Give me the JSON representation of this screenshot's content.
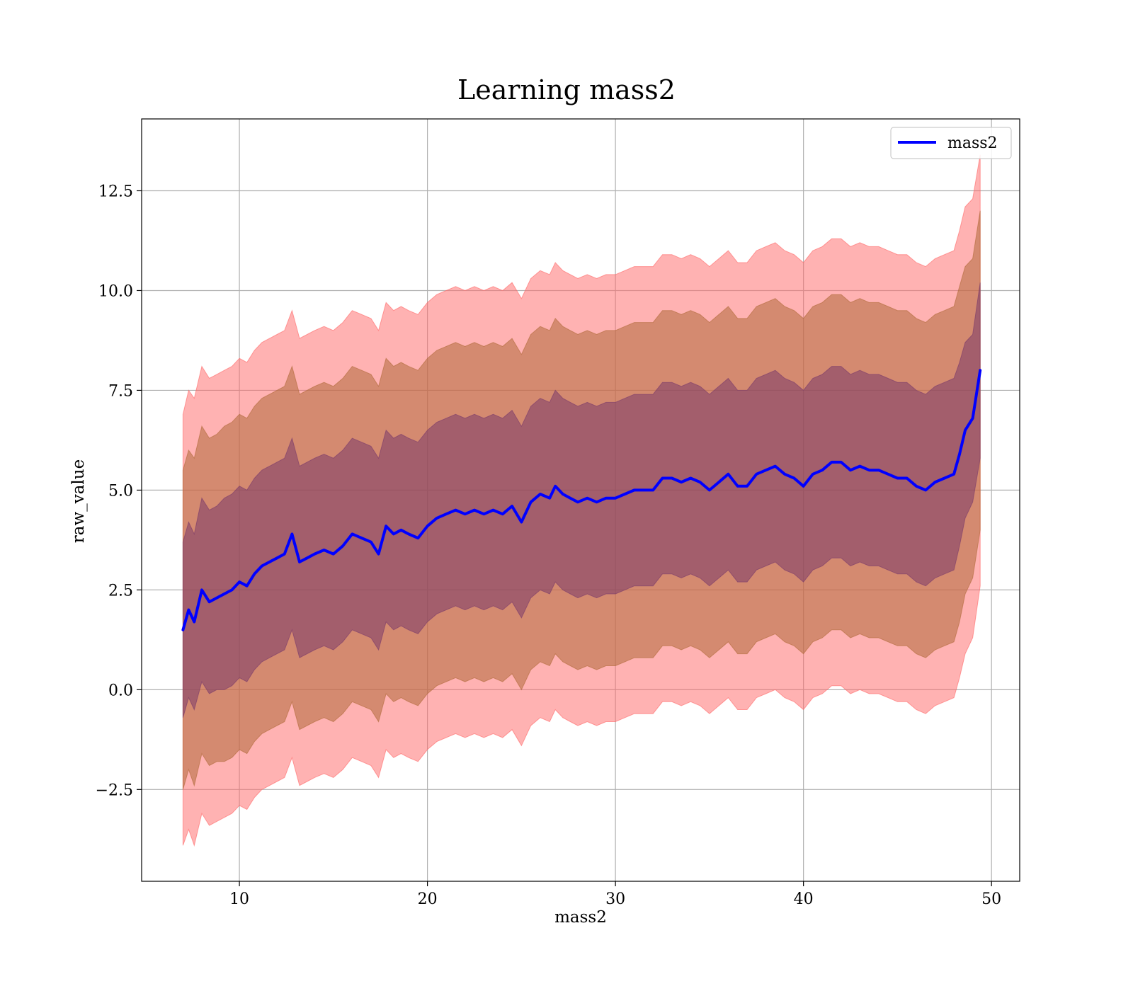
{
  "chart_data": {
    "type": "line",
    "title": "Learning mass2",
    "xlabel": "mass2",
    "ylabel": "raw_value",
    "xlim": [
      4.8,
      51.5
    ],
    "ylim": [
      -4.8,
      14.3
    ],
    "xticks": [
      10,
      20,
      30,
      40,
      50
    ],
    "xtick_labels": [
      "10",
      "20",
      "30",
      "40",
      "50"
    ],
    "yticks": [
      -2.5,
      0.0,
      2.5,
      5.0,
      7.5,
      10.0,
      12.5
    ],
    "ytick_labels": [
      "−2.5",
      "0.0",
      "2.5",
      "5.0",
      "7.5",
      "10.0",
      "12.5"
    ],
    "grid": true,
    "legend": {
      "position": "top-right",
      "entries": [
        "mass2"
      ]
    },
    "series": [
      {
        "name": "mass2",
        "color": "#0000ff",
        "x": [
          7.0,
          7.3,
          7.6,
          8.0,
          8.4,
          8.8,
          9.2,
          9.6,
          10.0,
          10.4,
          10.8,
          11.2,
          11.6,
          12.0,
          12.4,
          12.8,
          13.2,
          13.6,
          14.0,
          14.5,
          15.0,
          15.5,
          16.0,
          16.5,
          17.0,
          17.4,
          17.8,
          18.2,
          18.6,
          19.0,
          19.5,
          20.0,
          20.5,
          21.0,
          21.5,
          22.0,
          22.5,
          23.0,
          23.5,
          24.0,
          24.5,
          25.0,
          25.5,
          26.0,
          26.5,
          26.8,
          27.2,
          27.6,
          28.0,
          28.5,
          29.0,
          29.5,
          30.0,
          30.5,
          31.0,
          31.5,
          32.0,
          32.5,
          33.0,
          33.5,
          34.0,
          34.5,
          35.0,
          35.5,
          36.0,
          36.5,
          37.0,
          37.5,
          38.0,
          38.5,
          39.0,
          39.5,
          40.0,
          40.5,
          41.0,
          41.5,
          42.0,
          42.5,
          43.0,
          43.5,
          44.0,
          44.5,
          45.0,
          45.5,
          46.0,
          46.5,
          47.0,
          47.5,
          48.0,
          48.3,
          48.6,
          49.0,
          49.4
        ],
        "values": [
          1.5,
          2.0,
          1.7,
          2.5,
          2.2,
          2.3,
          2.4,
          2.5,
          2.7,
          2.6,
          2.9,
          3.1,
          3.2,
          3.3,
          3.4,
          3.9,
          3.2,
          3.3,
          3.4,
          3.5,
          3.4,
          3.6,
          3.9,
          3.8,
          3.7,
          3.4,
          4.1,
          3.9,
          4.0,
          3.9,
          3.8,
          4.1,
          4.3,
          4.4,
          4.5,
          4.4,
          4.5,
          4.4,
          4.5,
          4.4,
          4.6,
          4.2,
          4.7,
          4.9,
          4.8,
          5.1,
          4.9,
          4.8,
          4.7,
          4.8,
          4.7,
          4.8,
          4.8,
          4.9,
          5.0,
          5.0,
          5.0,
          5.3,
          5.3,
          5.2,
          5.3,
          5.2,
          5.0,
          5.2,
          5.4,
          5.1,
          5.1,
          5.4,
          5.5,
          5.6,
          5.4,
          5.3,
          5.1,
          5.4,
          5.5,
          5.7,
          5.7,
          5.5,
          5.6,
          5.5,
          5.5,
          5.4,
          5.3,
          5.3,
          5.1,
          5.0,
          5.2,
          5.3,
          5.4,
          5.9,
          6.5,
          6.8,
          8.0
        ]
      }
    ],
    "bands": [
      {
        "sigma": 1,
        "color": "#7a3a6a",
        "opacity": 0.55,
        "half_width": [
          2.2,
          2.2,
          2.2,
          2.3,
          2.3,
          2.3,
          2.4,
          2.4,
          2.4,
          2.4,
          2.4,
          2.4,
          2.4,
          2.4,
          2.4,
          2.4,
          2.4,
          2.4,
          2.4,
          2.4,
          2.4,
          2.4,
          2.4,
          2.4,
          2.4,
          2.4,
          2.4,
          2.4,
          2.4,
          2.4,
          2.4,
          2.4,
          2.4,
          2.4,
          2.4,
          2.4,
          2.4,
          2.4,
          2.4,
          2.4,
          2.4,
          2.4,
          2.4,
          2.4,
          2.4,
          2.4,
          2.4,
          2.4,
          2.4,
          2.4,
          2.4,
          2.4,
          2.4,
          2.4,
          2.4,
          2.4,
          2.4,
          2.4,
          2.4,
          2.4,
          2.4,
          2.4,
          2.4,
          2.4,
          2.4,
          2.4,
          2.4,
          2.4,
          2.4,
          2.4,
          2.4,
          2.4,
          2.4,
          2.4,
          2.4,
          2.4,
          2.4,
          2.4,
          2.4,
          2.4,
          2.4,
          2.4,
          2.4,
          2.4,
          2.4,
          2.4,
          2.4,
          2.4,
          2.4,
          2.3,
          2.2,
          2.1,
          2.2
        ]
      },
      {
        "sigma": 2,
        "color": "#b06a3a",
        "opacity": 0.55,
        "half_width": [
          4.0,
          4.0,
          4.1,
          4.1,
          4.1,
          4.1,
          4.2,
          4.2,
          4.2,
          4.2,
          4.2,
          4.2,
          4.2,
          4.2,
          4.2,
          4.2,
          4.2,
          4.2,
          4.2,
          4.2,
          4.2,
          4.2,
          4.2,
          4.2,
          4.2,
          4.2,
          4.2,
          4.2,
          4.2,
          4.2,
          4.2,
          4.2,
          4.2,
          4.2,
          4.2,
          4.2,
          4.2,
          4.2,
          4.2,
          4.2,
          4.2,
          4.2,
          4.2,
          4.2,
          4.2,
          4.2,
          4.2,
          4.2,
          4.2,
          4.2,
          4.2,
          4.2,
          4.2,
          4.2,
          4.2,
          4.2,
          4.2,
          4.2,
          4.2,
          4.2,
          4.2,
          4.2,
          4.2,
          4.2,
          4.2,
          4.2,
          4.2,
          4.2,
          4.2,
          4.2,
          4.2,
          4.2,
          4.2,
          4.2,
          4.2,
          4.2,
          4.2,
          4.2,
          4.2,
          4.2,
          4.2,
          4.2,
          4.2,
          4.2,
          4.2,
          4.2,
          4.2,
          4.2,
          4.2,
          4.2,
          4.1,
          4.0,
          4.0
        ]
      },
      {
        "sigma": 3,
        "color": "#ff6666",
        "opacity": 0.5,
        "half_width": [
          5.4,
          5.5,
          5.6,
          5.6,
          5.6,
          5.6,
          5.6,
          5.6,
          5.6,
          5.6,
          5.6,
          5.6,
          5.6,
          5.6,
          5.6,
          5.6,
          5.6,
          5.6,
          5.6,
          5.6,
          5.6,
          5.6,
          5.6,
          5.6,
          5.6,
          5.6,
          5.6,
          5.6,
          5.6,
          5.6,
          5.6,
          5.6,
          5.6,
          5.6,
          5.6,
          5.6,
          5.6,
          5.6,
          5.6,
          5.6,
          5.6,
          5.6,
          5.6,
          5.6,
          5.6,
          5.6,
          5.6,
          5.6,
          5.6,
          5.6,
          5.6,
          5.6,
          5.6,
          5.6,
          5.6,
          5.6,
          5.6,
          5.6,
          5.6,
          5.6,
          5.6,
          5.6,
          5.6,
          5.6,
          5.6,
          5.6,
          5.6,
          5.6,
          5.6,
          5.6,
          5.6,
          5.6,
          5.6,
          5.6,
          5.6,
          5.6,
          5.6,
          5.6,
          5.6,
          5.6,
          5.6,
          5.6,
          5.6,
          5.6,
          5.6,
          5.6,
          5.6,
          5.6,
          5.6,
          5.6,
          5.6,
          5.5,
          5.4
        ]
      }
    ]
  }
}
